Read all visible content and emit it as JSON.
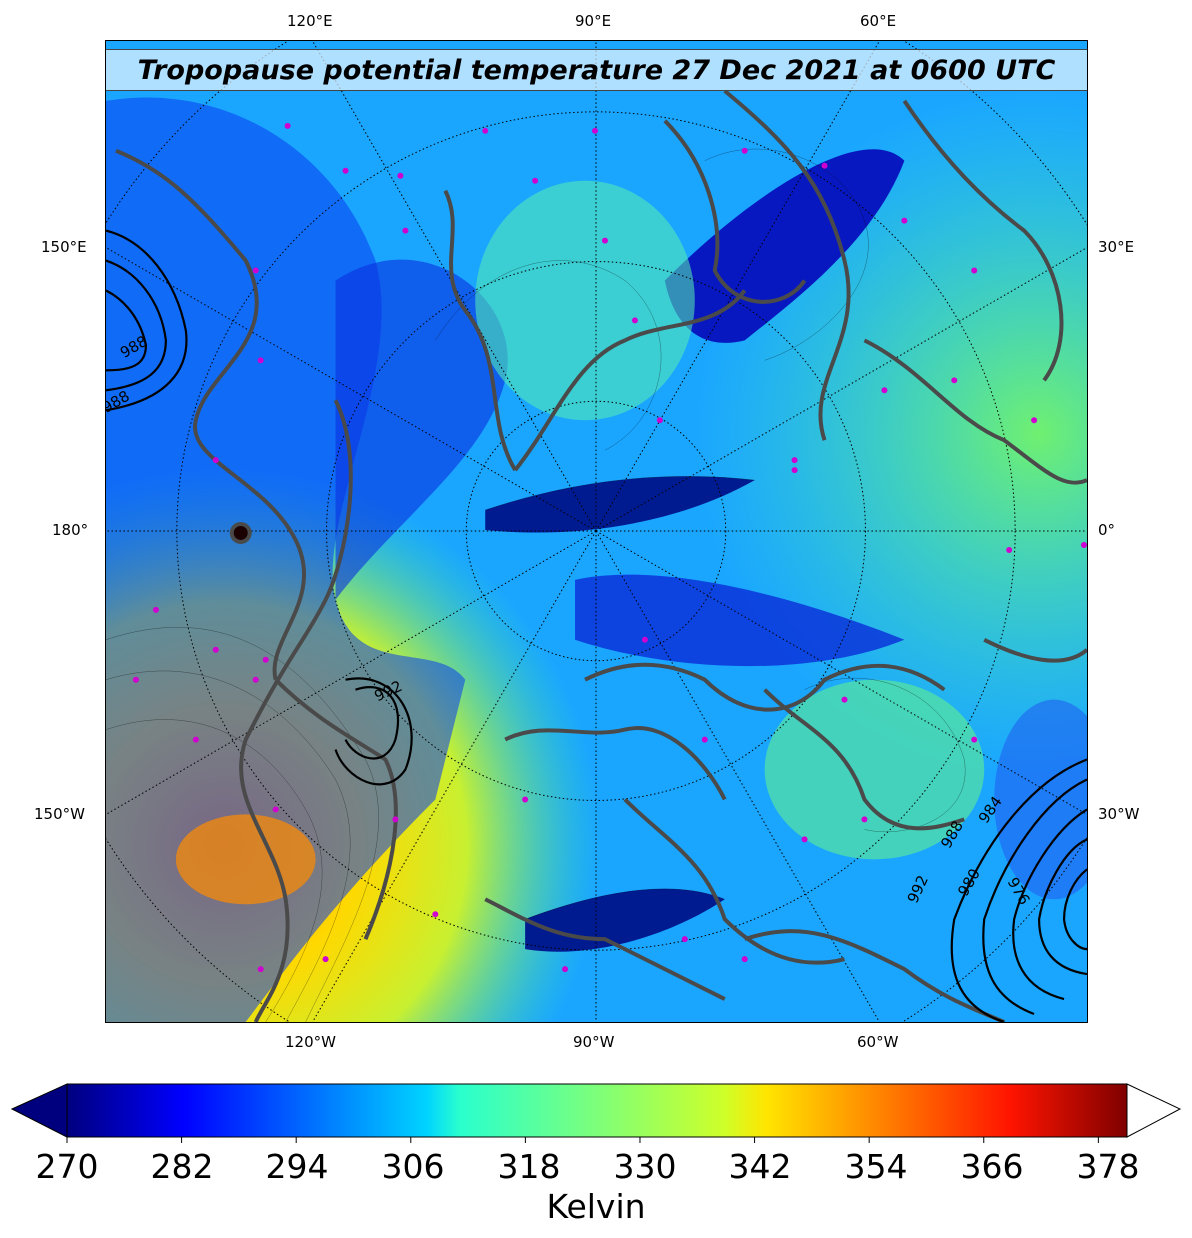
{
  "title": "Tropopause potential temperature 27 Dec 2021 at 0600 UTC",
  "map": {
    "top_labels": [
      "120°E",
      "90°E",
      "60°E"
    ],
    "bottom_labels": [
      "120°W",
      "90°W",
      "60°W"
    ],
    "left_labels": [
      "150°E",
      "180°",
      "150°W"
    ],
    "right_labels": [
      "30°E",
      "0°",
      "30°W"
    ],
    "pressure_contour_labels": [
      "988",
      "988",
      "992",
      "992",
      "988",
      "984",
      "980",
      "976"
    ],
    "colors": {
      "coastline": "#4a4a4a",
      "marker": "#d000d0",
      "contour": "#000000"
    }
  },
  "colorbar": {
    "ticks": [
      "270",
      "282",
      "294",
      "306",
      "318",
      "330",
      "342",
      "354",
      "366",
      "378"
    ],
    "label": "Kelvin",
    "colormap": "jet",
    "min": 270,
    "max": 381
  }
}
